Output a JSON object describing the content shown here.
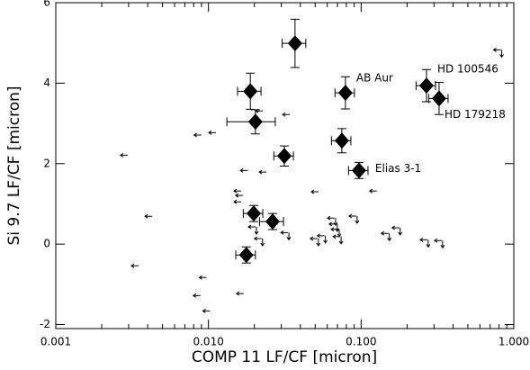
{
  "chart_data": {
    "type": "scatter",
    "xlabel": "COMP 11 LF/CF [micron]",
    "ylabel": "Si 9.7 LF/CF [micron]",
    "xscale": "log",
    "xlim": [
      0.001,
      1
    ],
    "ylim": [
      -2.1,
      6
    ],
    "xticks": [
      0.001,
      {
        "value": 0.01,
        "label": "0.010"
      },
      {
        "value": 0.1,
        "label": "0.100"
      },
      {
        "value": 1,
        "label": "1.000"
      }
    ],
    "xminorticks": [
      0.002,
      0.003,
      0.004,
      0.005,
      0.006,
      0.007,
      0.008,
      0.009,
      0.02,
      0.03,
      0.04,
      0.05,
      0.06,
      0.07,
      0.08,
      0.09,
      0.2,
      0.3,
      0.4,
      0.5,
      0.6,
      0.7,
      0.8,
      0.9
    ],
    "yticks": [
      -2,
      0,
      2,
      4,
      6
    ],
    "color": "#000000",
    "points": {
      "x": [
        0.0369,
        0.0188,
        0.0203,
        0.0789,
        0.268,
        0.324,
        0.0748,
        0.0314,
        0.0968,
        0.0198,
        0.0263,
        0.0177
      ],
      "y": [
        4.99,
        3.8,
        3.04,
        3.76,
        3.94,
        3.62,
        2.57,
        2.19,
        1.83,
        0.76,
        0.56,
        -0.27
      ],
      "xerr": [
        0.0065,
        0.0033,
        0.0071,
        0.0115,
        0.039,
        0.047,
        0.0109,
        0.0046,
        0.0141,
        0.0029,
        0.0047,
        0.0026
      ],
      "yerr": [
        0.6,
        0.45,
        0.3,
        0.4,
        0.4,
        0.4,
        0.3,
        0.25,
        0.2,
        0.2,
        0.2,
        0.2
      ]
    },
    "x_limits": {
      "x": [
        0.0028,
        0.00405,
        0.0033,
        0.0085,
        0.0106,
        0.0092,
        0.0084,
        0.0097,
        0.0171,
        0.0227,
        0.0155,
        0.0159,
        0.0155,
        0.0161,
        0.0323,
        0.0215,
        0.0498,
        0.12
      ],
      "y": [
        2.21,
        0.69,
        -0.54,
        2.71,
        2.77,
        -0.83,
        -1.28,
        -1.66,
        1.83,
        1.79,
        1.32,
        1.21,
        1.05,
        -1.23,
        3.22,
        3.31,
        1.3,
        1.32
      ]
    },
    "xy_limits": {
      "x": [
        0.0198,
        0.0217,
        0.0323,
        0.0504,
        0.056,
        0.0653,
        0.067,
        0.069,
        0.071,
        0.0904,
        0.173,
        0.147,
        0.264,
        0.328,
        0.8
      ],
      "y": [
        0.36,
        0.07,
        0.22,
        0.07,
        0.14,
        0.58,
        0.43,
        0.3,
        0.12,
        0.63,
        0.34,
        0.2,
        0.04,
        0.02,
        4.76
      ]
    },
    "annotations": [
      "AB Aur",
      "HD 100546",
      "HD 179218",
      "Elias 3-1"
    ]
  }
}
